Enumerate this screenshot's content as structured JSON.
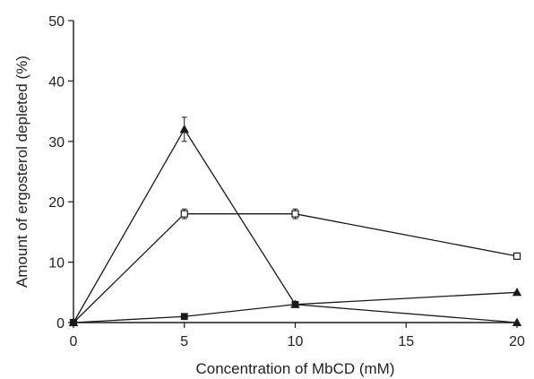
{
  "chart_data": {
    "type": "line",
    "title": "",
    "xlabel": "Concentration of MbCD (mM)",
    "ylabel": "Amount of ergosterol depleted (%)",
    "xlim": [
      0,
      20
    ],
    "ylim": [
      0,
      50
    ],
    "xticks": [
      0,
      5,
      10,
      15,
      20
    ],
    "yticks": [
      0,
      10,
      20,
      30,
      40,
      50
    ],
    "grid": false,
    "legend": "none",
    "line_color": "#1a1a1a",
    "series": [
      {
        "marker": "triangle-filled",
        "x": [
          0,
          5,
          10,
          20
        ],
        "y": [
          0,
          32,
          3,
          0
        ],
        "error": [
          0,
          2,
          0,
          0
        ]
      },
      {
        "marker": "square-open",
        "x": [
          0,
          5,
          10,
          20
        ],
        "y": [
          0,
          18,
          18,
          11
        ],
        "error": [
          0,
          0.8,
          0.8,
          0.5
        ]
      },
      {
        "marker": "square-filled",
        "x": [
          0,
          5,
          10,
          20
        ],
        "y": [
          0,
          1,
          3,
          5
        ],
        "error": [
          0,
          0,
          0,
          0
        ]
      }
    ],
    "marker_override": {
      "note_series_index": 2,
      "point_markers": [
        "square-filled",
        "square-filled",
        "square-filled",
        "triangle-filled"
      ]
    }
  }
}
